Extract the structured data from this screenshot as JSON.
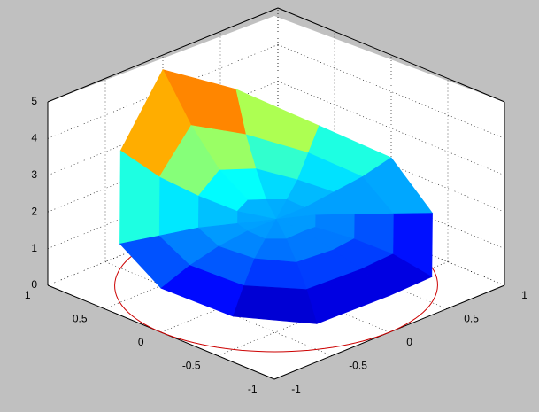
{
  "chart_data": {
    "type": "surface",
    "r": [
      0,
      0.25,
      0.5,
      0.75,
      1
    ],
    "theta": [
      0,
      30,
      60,
      90,
      120,
      150,
      180,
      210,
      240,
      270,
      300,
      330
    ],
    "z": [
      [
        1.8,
        1.8,
        1.8,
        1.8,
        1.8,
        1.8,
        1.8,
        1.8,
        1.8,
        1.8,
        1.8,
        1.8
      ],
      [
        2.0,
        1.9,
        1.9,
        1.8,
        1.8,
        1.7,
        1.8,
        1.7,
        1.7,
        1.8,
        1.8,
        1.9
      ],
      [
        2.5,
        2.3,
        2.0,
        1.9,
        1.7,
        1.5,
        1.6,
        1.5,
        1.6,
        1.7,
        1.8,
        2.2
      ],
      [
        3.4,
        2.8,
        2.3,
        2.0,
        1.6,
        1.2,
        1.4,
        1.2,
        1.3,
        1.5,
        1.7,
        2.6
      ],
      [
        4.6,
        3.6,
        2.6,
        2.2,
        1.5,
        0.7,
        1.0,
        0.7,
        0.9,
        1.2,
        1.6,
        3.2
      ]
    ],
    "colormap": "jet",
    "xlim": [
      -1,
      1
    ],
    "xticks": [
      -1,
      -0.5,
      0,
      0.5,
      1
    ],
    "ylim": [
      -1,
      1
    ],
    "yticks": [
      -1,
      -0.5,
      0,
      0.5,
      1
    ],
    "zlim": [
      0,
      5
    ],
    "zticks": [
      0,
      1,
      2,
      3,
      4,
      5
    ],
    "grid": true,
    "circle": {
      "r": 1,
      "z": 0,
      "color": "#cc0000"
    }
  }
}
